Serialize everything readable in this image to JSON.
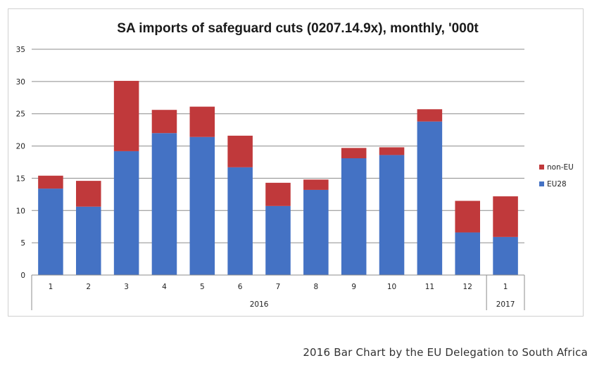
{
  "chart_data": {
    "type": "bar",
    "stacked": true,
    "title": "SA imports of safeguard cuts (0207.14.9x),  monthly, '000t",
    "categories": [
      "1",
      "2",
      "3",
      "4",
      "5",
      "6",
      "7",
      "8",
      "9",
      "10",
      "11",
      "12",
      "1"
    ],
    "year_groups": [
      {
        "label": "2016",
        "count": 12
      },
      {
        "label": "2017",
        "count": 1
      }
    ],
    "series": [
      {
        "name": "EU28",
        "color": "#4472c4",
        "values": [
          13.4,
          10.6,
          19.2,
          22.0,
          21.4,
          16.7,
          10.7,
          13.2,
          18.1,
          18.6,
          23.8,
          6.6,
          5.9
        ]
      },
      {
        "name": "non-EU",
        "color": "#c0393b",
        "values": [
          2.0,
          4.0,
          10.9,
          3.6,
          4.7,
          4.9,
          3.6,
          1.6,
          1.6,
          1.2,
          1.9,
          4.9,
          6.3
        ]
      }
    ],
    "legend_order": [
      "non-EU",
      "EU28"
    ],
    "ylim": [
      0,
      35
    ],
    "yticks": [
      0,
      5,
      10,
      15,
      20,
      25,
      30,
      35
    ],
    "legend_position": "right",
    "grid": true
  },
  "caption": "2016 Bar Chart by the EU Delegation to South Africa"
}
